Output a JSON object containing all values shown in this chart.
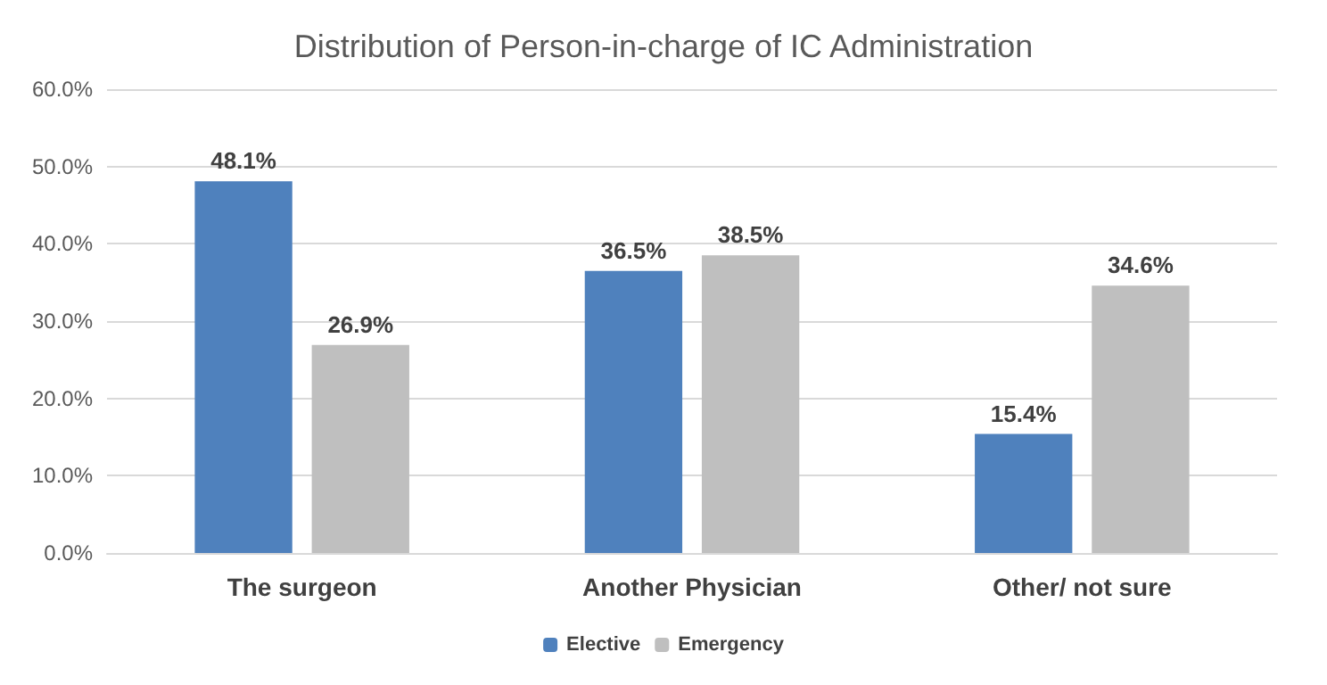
{
  "chart_data": {
    "type": "bar",
    "title": "Distribution of Person-in-charge of IC Administration",
    "categories": [
      "The surgeon",
      "Another Physician",
      "Other/ not sure"
    ],
    "series": [
      {
        "name": "Elective",
        "color": "#4f81bd",
        "values": [
          48.1,
          36.5,
          15.4
        ],
        "value_labels": [
          "48.1%",
          "36.5%",
          "15.4%"
        ]
      },
      {
        "name": "Emergency",
        "color": "#bfbfbf",
        "values": [
          26.9,
          38.5,
          34.6
        ],
        "value_labels": [
          "26.9%",
          "38.5%",
          "34.6%"
        ]
      }
    ],
    "ylim": [
      0,
      60
    ],
    "yticks": [
      {
        "value": 0,
        "label": "0.0%"
      },
      {
        "value": 10,
        "label": "10.0%"
      },
      {
        "value": 20,
        "label": "20.0%"
      },
      {
        "value": 30,
        "label": "30.0%"
      },
      {
        "value": 40,
        "label": "40.0%"
      },
      {
        "value": 50,
        "label": "50.0%"
      },
      {
        "value": 60,
        "label": "60.0%"
      }
    ],
    "grid": "y",
    "legend": "bottom"
  }
}
